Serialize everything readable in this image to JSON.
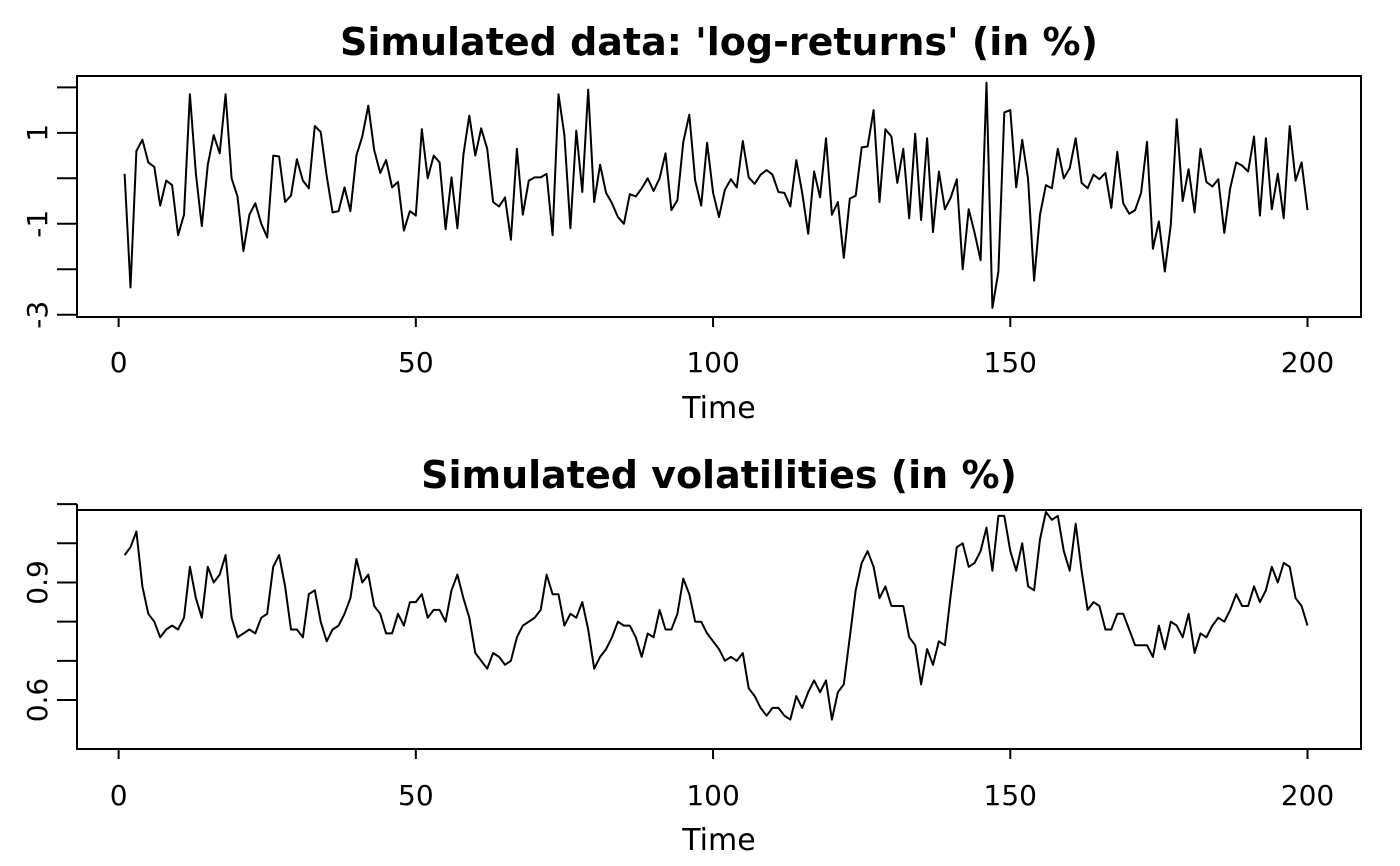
{
  "chart_data": [
    {
      "type": "line",
      "title": "Simulated data: 'log-returns' (in %)",
      "xlabel": "Time",
      "ylabel": "",
      "xlim": [
        -7,
        209
      ],
      "ylim": [
        -3.05,
        2.25
      ],
      "xticks": [
        0,
        50,
        100,
        150,
        200
      ],
      "yticks": [
        -3,
        -2,
        -1,
        0,
        1,
        2
      ],
      "ytick_labels": [
        "-3",
        "",
        "-1",
        "",
        "1",
        ""
      ],
      "grid": false,
      "x": [
        1,
        2,
        3,
        4,
        5,
        6,
        7,
        8,
        9,
        10,
        11,
        12,
        13,
        14,
        15,
        16,
        17,
        18,
        19,
        20,
        21,
        22,
        23,
        24,
        25,
        26,
        27,
        28,
        29,
        30,
        31,
        32,
        33,
        34,
        35,
        36,
        37,
        38,
        39,
        40,
        41,
        42,
        43,
        44,
        45,
        46,
        47,
        48,
        49,
        50,
        51,
        52,
        53,
        54,
        55,
        56,
        57,
        58,
        59,
        60,
        61,
        62,
        63,
        64,
        65,
        66,
        67,
        68,
        69,
        70,
        71,
        72,
        73,
        74,
        75,
        76,
        77,
        78,
        79,
        80,
        81,
        82,
        83,
        84,
        85,
        86,
        87,
        88,
        89,
        90,
        91,
        92,
        93,
        94,
        95,
        96,
        97,
        98,
        99,
        100,
        101,
        102,
        103,
        104,
        105,
        106,
        107,
        108,
        109,
        110,
        111,
        112,
        113,
        114,
        115,
        116,
        117,
        118,
        119,
        120,
        121,
        122,
        123,
        124,
        125,
        126,
        127,
        128,
        129,
        130,
        131,
        132,
        133,
        134,
        135,
        136,
        137,
        138,
        139,
        140,
        141,
        142,
        143,
        144,
        145,
        146,
        147,
        148,
        149,
        150,
        151,
        152,
        153,
        154,
        155,
        156,
        157,
        158,
        159,
        160,
        161,
        162,
        163,
        164,
        165,
        166,
        167,
        168,
        169,
        170,
        171,
        172,
        173,
        174,
        175,
        176,
        177,
        178,
        179,
        180,
        181,
        182,
        183,
        184,
        185,
        186,
        187,
        188,
        189,
        190,
        191,
        192,
        193,
        194,
        195,
        196,
        197,
        198,
        199,
        200
      ],
      "series": [
        {
          "values": [
            0.1,
            -2.4,
            0.6,
            0.85,
            0.35,
            0.25,
            -0.6,
            -0.05,
            -0.15,
            -1.25,
            -0.8,
            1.85,
            0.1,
            -1.05,
            0.3,
            0.95,
            0.55,
            1.85,
            0.0,
            -0.4,
            -1.6,
            -0.8,
            -0.55,
            -1.0,
            -1.3,
            0.5,
            0.48,
            -0.52,
            -0.38,
            0.42,
            -0.05,
            -0.22,
            1.15,
            1.02,
            0.05,
            -0.75,
            -0.72,
            -0.2,
            -0.72,
            0.5,
            0.92,
            1.6,
            0.62,
            0.12,
            0.4,
            -0.2,
            -0.08,
            -1.15,
            -0.72,
            -0.82,
            1.08,
            0.0,
            0.5,
            0.35,
            -1.12,
            0.02,
            -1.1,
            0.52,
            1.38,
            0.5,
            1.1,
            0.65,
            -0.52,
            -0.62,
            -0.42,
            -1.35,
            0.65,
            -0.8,
            -0.05,
            0.02,
            0.02,
            0.1,
            -1.25,
            1.85,
            0.95,
            -1.1,
            1.05,
            -0.3,
            1.95,
            -0.52,
            0.3,
            -0.32,
            -0.55,
            -0.85,
            -1.0,
            -0.35,
            -0.4,
            -0.22,
            0.0,
            -0.28,
            0.0,
            0.55,
            -0.7,
            -0.48,
            0.8,
            1.4,
            -0.05,
            -0.6,
            0.78,
            -0.32,
            -0.85,
            -0.25,
            -0.02,
            -0.2,
            0.82,
            0.02,
            -0.12,
            0.08,
            0.18,
            0.08,
            -0.3,
            -0.32,
            -0.62,
            0.4,
            -0.32,
            -1.22,
            0.15,
            -0.42,
            0.88,
            -0.8,
            -0.52,
            -1.75,
            -0.45,
            -0.38,
            0.68,
            0.7,
            1.5,
            -0.52,
            1.08,
            0.92,
            -0.1,
            0.65,
            -0.88,
            0.98,
            -0.92,
            0.88,
            -1.18,
            0.15,
            -0.68,
            -0.42,
            -0.02,
            -2.0,
            -0.68,
            -1.2,
            -1.8,
            2.1,
            -2.85,
            -2.05,
            1.45,
            1.5,
            -0.2,
            0.85,
            -0.02,
            -2.25,
            -0.8,
            -0.15,
            -0.22,
            0.65,
            0.0,
            0.22,
            0.88,
            -0.1,
            -0.22,
            0.08,
            -0.02,
            0.12,
            -0.65,
            0.58,
            -0.55,
            -0.78,
            -0.7,
            -0.32,
            0.8,
            -1.55,
            -0.95,
            -2.05,
            -1.02,
            1.3,
            -0.5,
            0.2,
            -0.75,
            0.65,
            -0.08,
            -0.18,
            -0.02,
            -1.2,
            -0.22,
            0.35,
            0.28,
            0.15,
            0.92,
            -0.82,
            0.88,
            -0.68,
            0.1,
            -0.88,
            1.15,
            -0.05,
            0.35,
            -0.7
          ]
        }
      ]
    },
    {
      "type": "line",
      "title": "Simulated volatilities (in %)",
      "xlabel": "Time",
      "ylabel": "",
      "xlim": [
        -7,
        209
      ],
      "ylim": [
        0.475,
        1.085
      ],
      "xticks": [
        0,
        50,
        100,
        150,
        200
      ],
      "yticks": [
        0.6,
        0.7,
        0.8,
        0.9,
        1.0,
        1.1
      ],
      "ytick_labels": [
        "0.6",
        "",
        "",
        "0.9",
        "",
        ""
      ],
      "grid": false,
      "x": [
        1,
        2,
        3,
        4,
        5,
        6,
        7,
        8,
        9,
        10,
        11,
        12,
        13,
        14,
        15,
        16,
        17,
        18,
        19,
        20,
        21,
        22,
        23,
        24,
        25,
        26,
        27,
        28,
        29,
        30,
        31,
        32,
        33,
        34,
        35,
        36,
        37,
        38,
        39,
        40,
        41,
        42,
        43,
        44,
        45,
        46,
        47,
        48,
        49,
        50,
        51,
        52,
        53,
        54,
        55,
        56,
        57,
        58,
        59,
        60,
        61,
        62,
        63,
        64,
        65,
        66,
        67,
        68,
        69,
        70,
        71,
        72,
        73,
        74,
        75,
        76,
        77,
        78,
        79,
        80,
        81,
        82,
        83,
        84,
        85,
        86,
        87,
        88,
        89,
        90,
        91,
        92,
        93,
        94,
        95,
        96,
        97,
        98,
        99,
        100,
        101,
        102,
        103,
        104,
        105,
        106,
        107,
        108,
        109,
        110,
        111,
        112,
        113,
        114,
        115,
        116,
        117,
        118,
        119,
        120,
        121,
        122,
        123,
        124,
        125,
        126,
        127,
        128,
        129,
        130,
        131,
        132,
        133,
        134,
        135,
        136,
        137,
        138,
        139,
        140,
        141,
        142,
        143,
        144,
        145,
        146,
        147,
        148,
        149,
        150,
        151,
        152,
        153,
        154,
        155,
        156,
        157,
        158,
        159,
        160,
        161,
        162,
        163,
        164,
        165,
        166,
        167,
        168,
        169,
        170,
        171,
        172,
        173,
        174,
        175,
        176,
        177,
        178,
        179,
        180,
        181,
        182,
        183,
        184,
        185,
        186,
        187,
        188,
        189,
        190,
        191,
        192,
        193,
        194,
        195,
        196,
        197,
        198,
        199,
        200
      ],
      "series": [
        {
          "values": [
            0.97,
            0.99,
            1.03,
            0.89,
            0.82,
            0.8,
            0.76,
            0.78,
            0.79,
            0.78,
            0.81,
            0.94,
            0.86,
            0.81,
            0.94,
            0.9,
            0.92,
            0.97,
            0.81,
            0.76,
            0.77,
            0.78,
            0.77,
            0.81,
            0.82,
            0.94,
            0.97,
            0.89,
            0.78,
            0.78,
            0.76,
            0.87,
            0.88,
            0.8,
            0.75,
            0.78,
            0.79,
            0.82,
            0.86,
            0.96,
            0.9,
            0.92,
            0.84,
            0.82,
            0.77,
            0.77,
            0.82,
            0.79,
            0.85,
            0.85,
            0.87,
            0.81,
            0.83,
            0.83,
            0.8,
            0.88,
            0.92,
            0.86,
            0.81,
            0.72,
            0.7,
            0.68,
            0.72,
            0.71,
            0.69,
            0.7,
            0.76,
            0.79,
            0.8,
            0.81,
            0.83,
            0.92,
            0.87,
            0.87,
            0.79,
            0.82,
            0.81,
            0.85,
            0.78,
            0.68,
            0.71,
            0.73,
            0.76,
            0.8,
            0.79,
            0.79,
            0.76,
            0.71,
            0.77,
            0.76,
            0.83,
            0.78,
            0.78,
            0.82,
            0.91,
            0.87,
            0.8,
            0.8,
            0.77,
            0.75,
            0.73,
            0.7,
            0.71,
            0.7,
            0.72,
            0.63,
            0.61,
            0.58,
            0.56,
            0.58,
            0.58,
            0.56,
            0.55,
            0.61,
            0.58,
            0.62,
            0.65,
            0.62,
            0.65,
            0.55,
            0.62,
            0.64,
            0.76,
            0.88,
            0.95,
            0.98,
            0.94,
            0.86,
            0.89,
            0.84,
            0.84,
            0.84,
            0.76,
            0.74,
            0.64,
            0.73,
            0.69,
            0.75,
            0.74,
            0.87,
            0.99,
            1.0,
            0.94,
            0.95,
            0.98,
            1.04,
            0.93,
            1.07,
            1.07,
            0.98,
            0.93,
            1.0,
            0.89,
            0.88,
            1.01,
            1.08,
            1.06,
            1.07,
            0.98,
            0.93,
            1.05,
            0.93,
            0.83,
            0.85,
            0.84,
            0.78,
            0.78,
            0.82,
            0.82,
            0.78,
            0.74,
            0.74,
            0.74,
            0.71,
            0.79,
            0.73,
            0.8,
            0.79,
            0.76,
            0.82,
            0.72,
            0.77,
            0.76,
            0.79,
            0.81,
            0.8,
            0.83,
            0.87,
            0.84,
            0.84,
            0.89,
            0.85,
            0.88,
            0.94,
            0.9,
            0.95,
            0.94,
            0.86,
            0.84,
            0.79
          ]
        }
      ]
    }
  ]
}
